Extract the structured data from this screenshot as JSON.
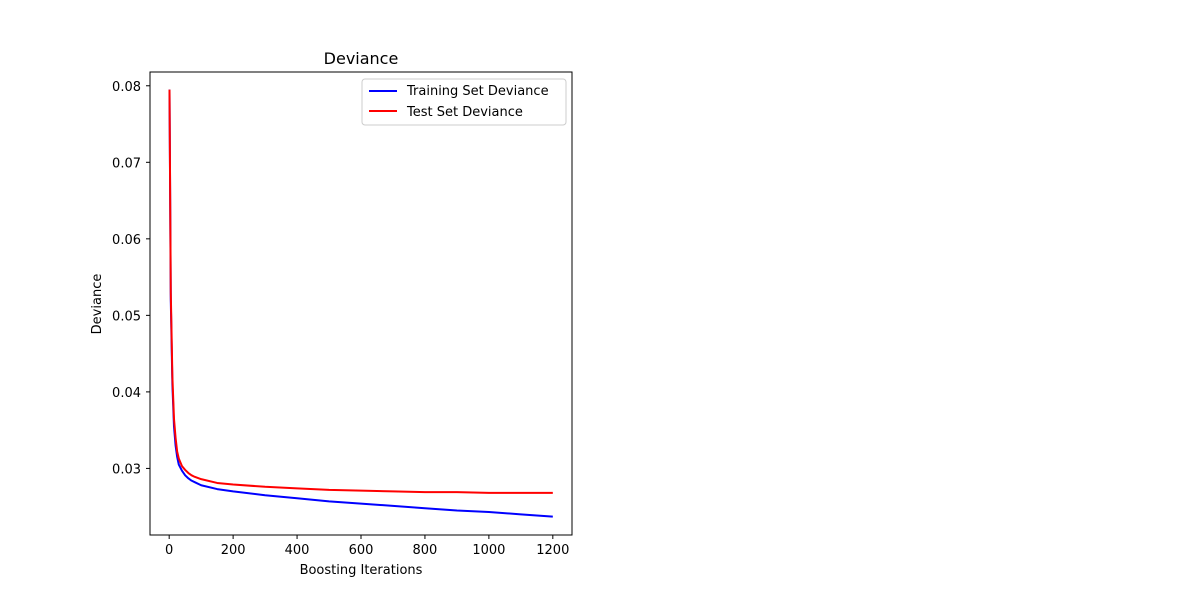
{
  "chart_data": {
    "type": "line",
    "title": "Deviance",
    "xlabel": "Boosting Iterations",
    "ylabel": "Deviance",
    "xlim": [
      -60,
      1260
    ],
    "ylim": [
      0.0213,
      0.0818
    ],
    "xticks": [
      0,
      200,
      400,
      600,
      800,
      1000,
      1200
    ],
    "yticks": [
      0.03,
      0.04,
      0.05,
      0.06,
      0.07,
      0.08
    ],
    "xtick_labels": [
      "0",
      "200",
      "400",
      "600",
      "800",
      "1000",
      "1200"
    ],
    "ytick_labels": [
      "0.03",
      "0.04",
      "0.05",
      "0.06",
      "0.07",
      "0.08"
    ],
    "grid": false,
    "legend_position": "upper right",
    "series": [
      {
        "name": "Training Set Deviance",
        "color": "#0000ff",
        "x": [
          1,
          5,
          10,
          15,
          20,
          25,
          30,
          40,
          50,
          60,
          70,
          80,
          100,
          150,
          200,
          300,
          400,
          500,
          600,
          700,
          800,
          900,
          1000,
          1100,
          1200
        ],
        "y": [
          0.0795,
          0.052,
          0.041,
          0.0355,
          0.033,
          0.0315,
          0.0305,
          0.0297,
          0.0291,
          0.0287,
          0.0284,
          0.0282,
          0.0278,
          0.0273,
          0.027,
          0.0265,
          0.0261,
          0.0257,
          0.0254,
          0.0251,
          0.0248,
          0.0245,
          0.0243,
          0.024,
          0.0237
        ]
      },
      {
        "name": "Test Set Deviance",
        "color": "#ff0000",
        "x": [
          1,
          5,
          10,
          15,
          20,
          25,
          30,
          40,
          50,
          60,
          70,
          80,
          100,
          150,
          200,
          300,
          400,
          500,
          600,
          700,
          800,
          900,
          1000,
          1100,
          1200
        ],
        "y": [
          0.0795,
          0.053,
          0.042,
          0.0365,
          0.034,
          0.0322,
          0.0313,
          0.0303,
          0.0298,
          0.0294,
          0.0291,
          0.0289,
          0.0286,
          0.0281,
          0.0279,
          0.0276,
          0.0274,
          0.0272,
          0.0271,
          0.027,
          0.0269,
          0.0269,
          0.0268,
          0.0268,
          0.0268
        ]
      }
    ]
  }
}
